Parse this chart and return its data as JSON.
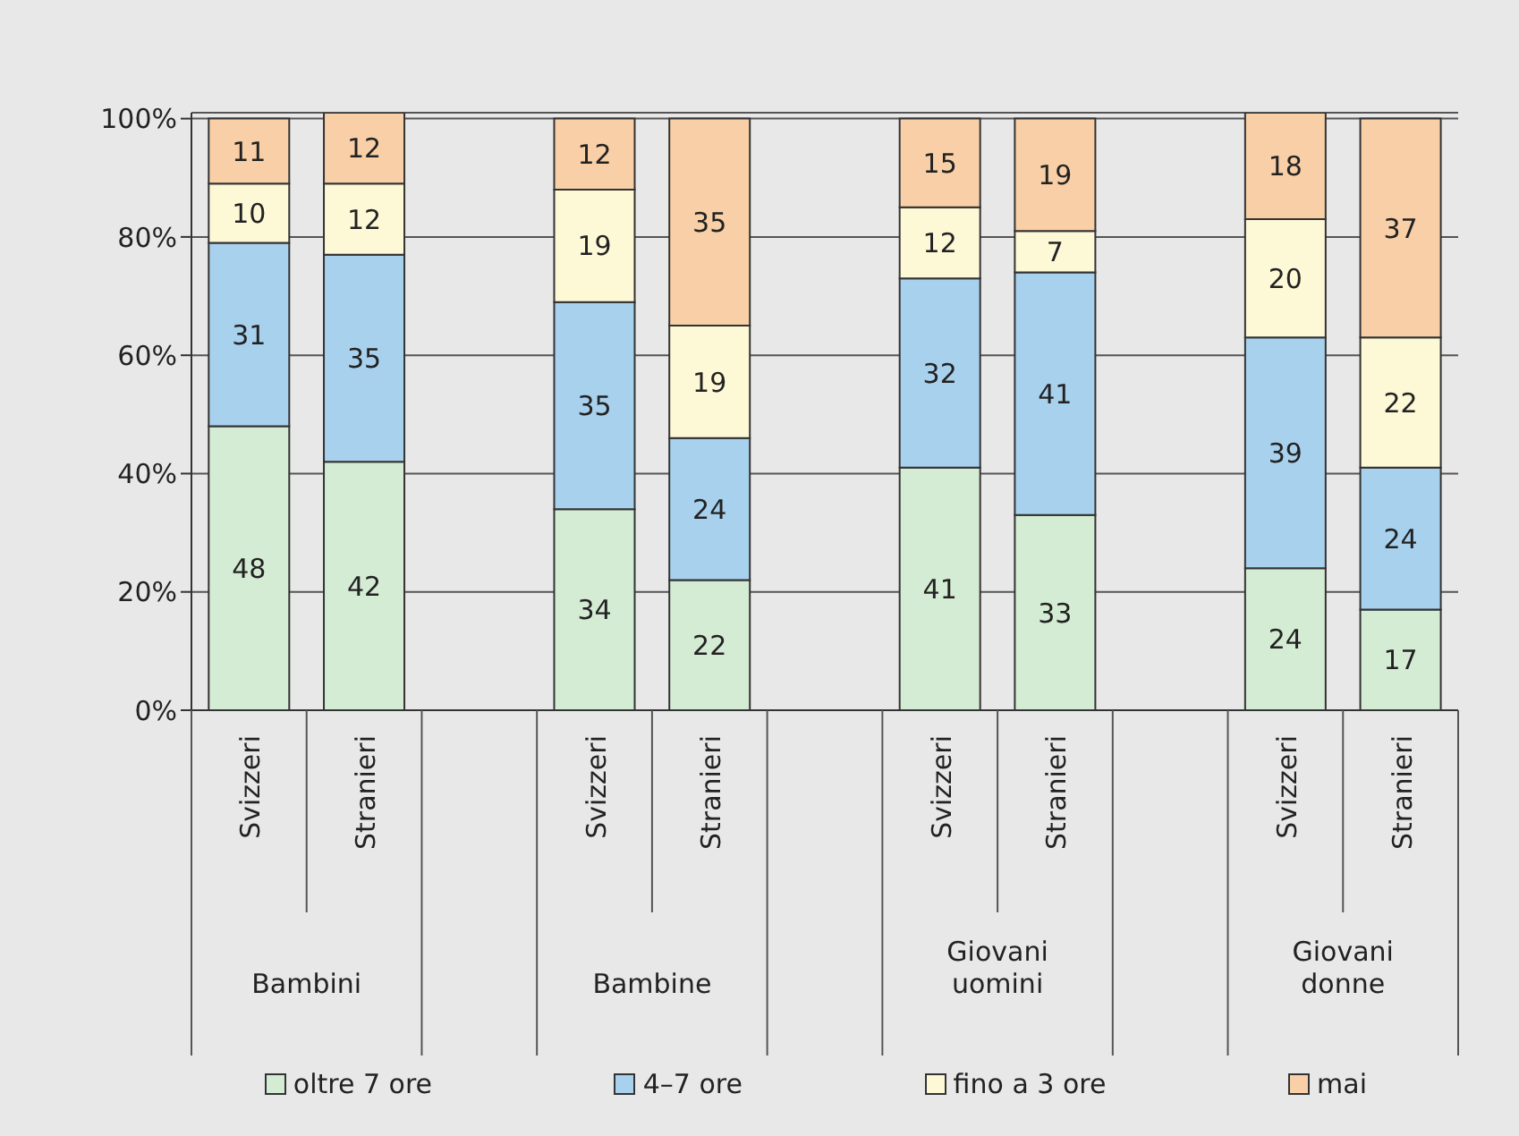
{
  "chart_data": {
    "type": "bar",
    "stacked": true,
    "categories": [
      "Svizzeri",
      "Stranieri",
      null,
      "Svizzeri",
      "Stranieri",
      null,
      "Svizzeri",
      "Stranieri",
      null,
      "Svizzeri",
      "Stranieri"
    ],
    "series": [
      {
        "name": "oltre 7 ore",
        "color": "#d5ecd4",
        "values": [
          48,
          42,
          null,
          34,
          22,
          null,
          41,
          33,
          null,
          24,
          17
        ]
      },
      {
        "name": "4–7 ore",
        "color": "#a8d1ee",
        "values": [
          31,
          35,
          null,
          35,
          24,
          null,
          32,
          41,
          null,
          39,
          24
        ]
      },
      {
        "name": "fino a 3 ore",
        "color": "#fdf8d6",
        "values": [
          10,
          12,
          null,
          19,
          19,
          null,
          12,
          7,
          null,
          20,
          22
        ]
      },
      {
        "name": "mai",
        "color": "#f8cfa6",
        "values": [
          11,
          12,
          null,
          12,
          35,
          null,
          15,
          19,
          null,
          18,
          37
        ]
      }
    ],
    "annotations": [
      "Bambini",
      "Bambine",
      "Giovani uomini",
      "Giovani donne"
    ],
    "ylim": [
      0,
      101
    ],
    "yticks": [
      {
        "value": 0,
        "label": "0%"
      },
      {
        "value": 20,
        "label": "20%"
      },
      {
        "value": 40,
        "label": "40%"
      },
      {
        "value": 60,
        "label": "60%"
      },
      {
        "value": 80,
        "label": "80%"
      },
      {
        "value": 100,
        "label": "100%"
      }
    ],
    "grid": "y",
    "legend": "bottom",
    "data_labels": true
  }
}
